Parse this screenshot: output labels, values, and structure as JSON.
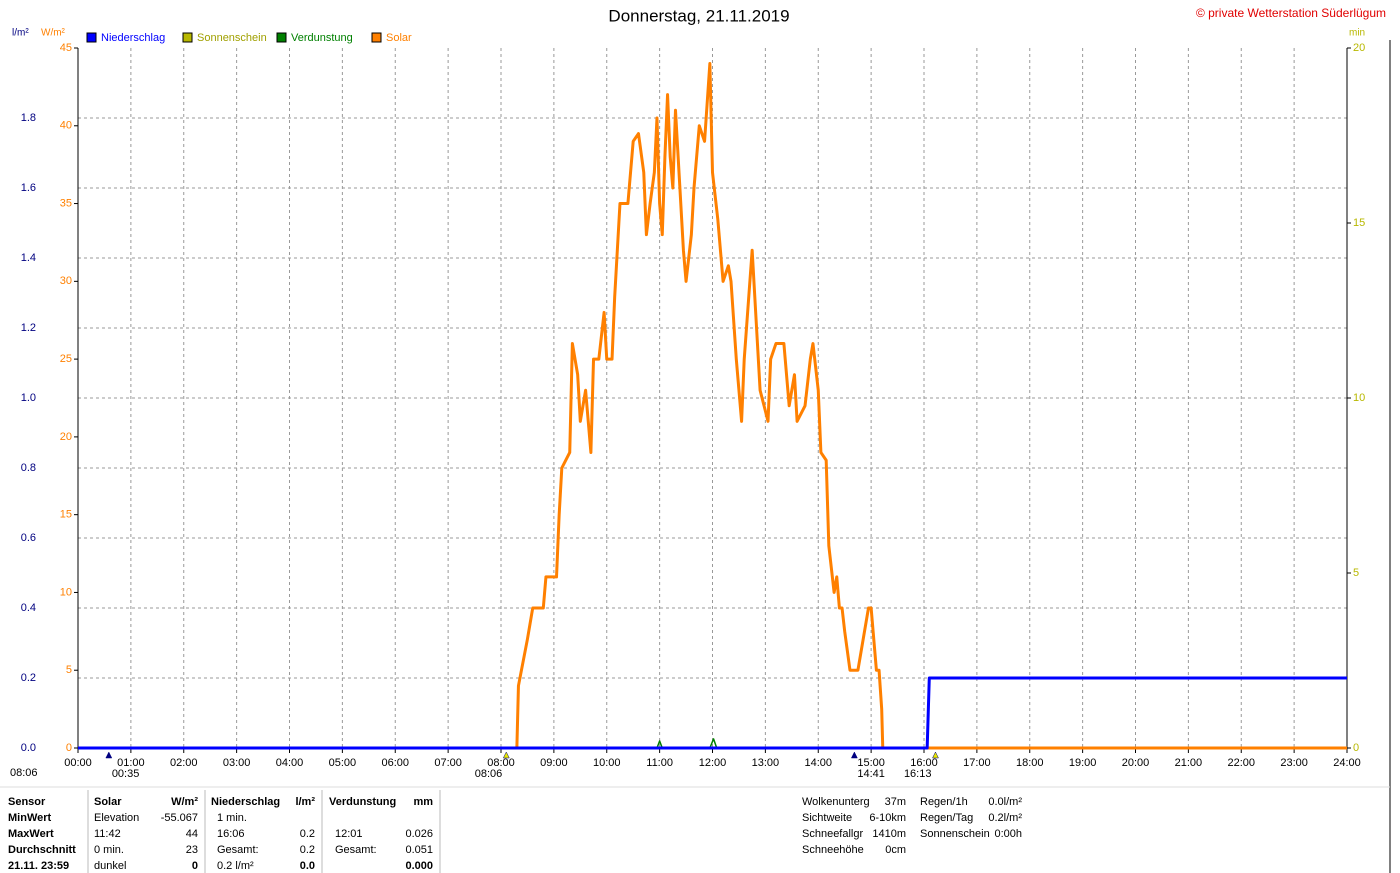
{
  "chart_data": {
    "type": "line",
    "title": "Donnerstag, 21.11.2019",
    "copyright": "© private Wetterstation Süderlügum",
    "ylabel": "l/m²",
    "y2label": "W/m²",
    "y3label": "min",
    "grid": true,
    "xlim": [
      0,
      24
    ],
    "ylim": [
      0,
      2
    ],
    "y2lim": [
      0,
      45
    ],
    "y3lim": [
      0,
      20
    ],
    "xticks": [
      {
        "value": 0,
        "label": "00:00"
      },
      {
        "value": 1,
        "label": "01:00"
      },
      {
        "value": 2,
        "label": "02:00"
      },
      {
        "value": 3,
        "label": "03:00"
      },
      {
        "value": 4,
        "label": "04:00"
      },
      {
        "value": 5,
        "label": "05:00"
      },
      {
        "value": 6,
        "label": "06:00"
      },
      {
        "value": 7,
        "label": "07:00"
      },
      {
        "value": 8,
        "label": "08:00"
      },
      {
        "value": 9,
        "label": "09:00"
      },
      {
        "value": 10,
        "label": "10:00"
      },
      {
        "value": 11,
        "label": "11:00"
      },
      {
        "value": 12,
        "label": "12:00"
      },
      {
        "value": 13,
        "label": "13:00"
      },
      {
        "value": 14,
        "label": "14:00"
      },
      {
        "value": 15,
        "label": "15:00"
      },
      {
        "value": 16,
        "label": "16:00"
      },
      {
        "value": 17,
        "label": "17:00"
      },
      {
        "value": 18,
        "label": "18:00"
      },
      {
        "value": 19,
        "label": "19:00"
      },
      {
        "value": 20,
        "label": "20:00"
      },
      {
        "value": 21,
        "label": "21:00"
      },
      {
        "value": 22,
        "label": "22:00"
      },
      {
        "value": 23,
        "label": "23:00"
      },
      {
        "value": 24,
        "label": "24:00"
      }
    ],
    "yticks": [
      {
        "value": 0,
        "label": "0.0"
      },
      0.2,
      0.4,
      0.6,
      0.8,
      {
        "value": 1,
        "label": "1.0"
      },
      1.2,
      1.4,
      1.6,
      1.8
    ],
    "y2ticks": [
      0,
      5,
      10,
      15,
      20,
      25,
      30,
      35,
      40,
      45
    ],
    "y3ticks": [
      0,
      5,
      10,
      15,
      20
    ],
    "series": [
      {
        "name": "Sonnenschein",
        "color": "#b8b800",
        "axis": "y3",
        "x": [
          0,
          24
        ],
        "values": [
          0,
          0
        ]
      },
      {
        "name": "Verdunstung",
        "color": "#008000",
        "axis": "y",
        "x": [
          0,
          10.95,
          11.0,
          11.05,
          11.95,
          12.02,
          12.08,
          24
        ],
        "values": [
          0,
          0,
          0.02,
          0,
          0,
          0.026,
          0,
          0
        ]
      },
      {
        "name": "Solar",
        "color": "#ff8000",
        "axis": "y2",
        "x": [
          0,
          8.3,
          8.33,
          8.5,
          8.6,
          8.8,
          8.85,
          9.05,
          9.1,
          9.15,
          9.3,
          9.35,
          9.45,
          9.5,
          9.6,
          9.7,
          9.75,
          9.85,
          9.95,
          10.0,
          10.1,
          10.15,
          10.25,
          10.4,
          10.5,
          10.6,
          10.7,
          10.75,
          10.82,
          10.9,
          10.95,
          11.0,
          11.05,
          11.1,
          11.15,
          11.2,
          11.25,
          11.3,
          11.35,
          11.45,
          11.5,
          11.6,
          11.65,
          11.75,
          11.85,
          11.95,
          12.0,
          12.1,
          12.2,
          12.3,
          12.35,
          12.45,
          12.55,
          12.6,
          12.75,
          12.85,
          12.9,
          13.05,
          13.1,
          13.2,
          13.35,
          13.45,
          13.55,
          13.6,
          13.75,
          13.85,
          13.9,
          14.0,
          14.05,
          14.15,
          14.2,
          14.3,
          14.35,
          14.4,
          14.45,
          14.5,
          14.6,
          14.75,
          14.85,
          14.95,
          15.0,
          15.05,
          15.1,
          15.15,
          15.2,
          15.22,
          24
        ],
        "values": [
          0,
          0,
          4,
          7,
          9,
          9,
          11,
          11,
          15,
          18,
          19,
          26,
          24,
          21,
          23,
          19,
          25,
          25,
          28,
          25,
          25,
          29,
          35,
          35,
          39,
          39.5,
          37,
          33,
          35,
          37,
          40.5,
          35,
          33,
          38,
          42,
          38,
          36,
          41,
          38,
          32,
          30,
          33,
          36,
          40,
          39,
          44,
          37,
          34,
          30,
          31,
          30,
          25,
          21,
          25,
          32,
          26,
          23,
          21,
          25,
          26,
          26,
          22,
          24,
          21,
          22,
          25,
          26,
          23,
          19,
          18.5,
          13,
          10,
          11,
          9,
          9,
          7.5,
          5,
          5,
          7,
          9,
          9,
          7,
          5,
          5,
          2.5,
          0,
          0
        ]
      },
      {
        "name": "Niederschlag",
        "color": "#0000ff",
        "axis": "y",
        "x": [
          0,
          16.06,
          16.1,
          24
        ],
        "values": [
          0,
          0,
          0.2,
          0.2
        ]
      }
    ],
    "annotations": [
      {
        "x": 0.583,
        "label": "00:35",
        "color": "#000080"
      },
      {
        "x": 8.1,
        "label": "08:06",
        "color": "#e8e800"
      },
      {
        "x": 14.683,
        "label": "14:41",
        "color": "#000080"
      },
      {
        "x": 16.217,
        "label": "16:13",
        "color": "#e8e800"
      }
    ],
    "corner_label": "08:06"
  },
  "stats": {
    "row_labels": [
      "Sensor",
      "MinWert",
      "MaxWert",
      "Durchschnitt",
      "21.11. 23:59"
    ],
    "blocks": [
      {
        "title": "Solar",
        "unit": "W/m²",
        "rows": [
          {
            "left": "Elevation",
            "right": "-55.067"
          },
          {
            "left": "11:42",
            "right": "44"
          },
          {
            "left": "0 min.",
            "right": "23"
          },
          {
            "left": "dunkel",
            "right": "0"
          }
        ]
      },
      {
        "title": "Niederschlag",
        "unit": "l/m²",
        "rows": [
          {
            "left": "1 min."
          },
          {
            "left": "16:06",
            "right": "0.2"
          },
          {
            "left": "Gesamt:",
            "right": "0.2"
          },
          {
            "left": "0.2 l/m²",
            "right": "0.0"
          }
        ]
      },
      {
        "title": "Verdunstung",
        "unit": "mm",
        "rows": [
          null,
          {
            "left": "12:01",
            "right": "0.026"
          },
          {
            "left": "Gesamt:",
            "right": "0.051"
          },
          {
            "right": "0.000"
          }
        ]
      }
    ],
    "info": [
      [
        {
          "label": "Wolkenunterg",
          "value": "37m"
        },
        {
          "label": "Sichtweite",
          "value": "6-10km"
        },
        {
          "label": "Schneefallgr",
          "value": "1410m"
        },
        {
          "label": "Schneehöhe",
          "value": "0cm"
        }
      ],
      [
        {
          "label": "Regen/1h",
          "value": "0.0l/m²"
        },
        {
          "label": "Regen/Tag",
          "value": "0.2l/m²"
        },
        {
          "label": "Sonnenschein",
          "value": "0:00h"
        }
      ]
    ]
  }
}
